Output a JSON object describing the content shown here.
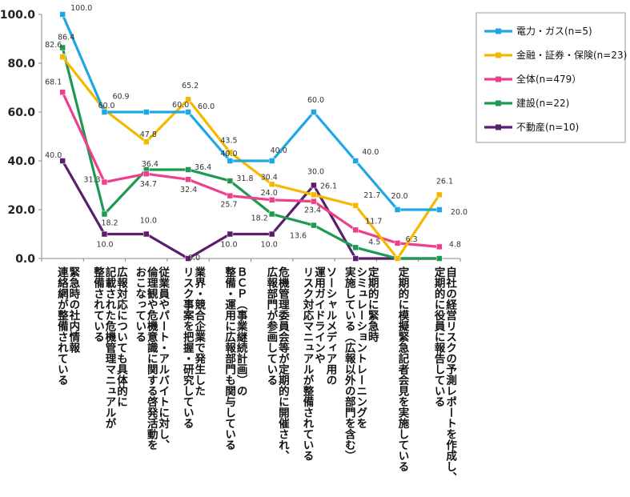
{
  "chart_data": {
    "type": "line",
    "title": "",
    "xlabel": "",
    "ylabel": "",
    "ylim": [
      0,
      100
    ],
    "yticks": [
      "0.0",
      "20.0",
      "40.0",
      "60.0",
      "80.0",
      "100.0"
    ],
    "categories": [
      [
        "緊急時の社内情報",
        "連絡網が整備されている"
      ],
      [
        "広報対応についても具体的に",
        "記載された危機管理マニュアルが",
        "整備されている"
      ],
      [
        "従業員やパート・アルバイトに対し、",
        "倫理観や危機意識に関する啓発活動を",
        "おこなっている"
      ],
      [
        "業界・競合企業で発生した",
        "リスク事案を把握・研究している"
      ],
      [
        "ＢＣＰ（事業継続計画）の",
        "整備・運用に広報部門も関与している"
      ],
      [
        "危機管理委員会等が定期的に開催され、",
        "広報部門が参画している"
      ],
      [
        "ソーシャルメディア用の",
        "運用ガイドラインや",
        "リスク対応マニュアルが整備されている"
      ],
      [
        "定期的に緊急時",
        "シミュレーショントレーニングを",
        "実施している（広報以外の部門を含む）"
      ],
      [
        "定期的に模擬緊急記者会見を実施している"
      ],
      [
        "自社の経営リスクの予測レポートを作成し、",
        "定期的に役員に報告している"
      ]
    ],
    "series": [
      {
        "name": "電力・ガス(n=5)",
        "color": "#1ea7e0",
        "values": [
          100.0,
          60.0,
          60.0,
          60.0,
          40.0,
          40.0,
          60.0,
          40.0,
          20.0,
          20.0
        ]
      },
      {
        "name": "金融・証券・保険(n=23)",
        "color": "#f5b800",
        "values": [
          82.6,
          60.9,
          47.8,
          65.2,
          43.5,
          30.4,
          26.1,
          21.7,
          0.0,
          26.1
        ]
      },
      {
        "name": "全体(n=479）",
        "color": "#ee3f8c",
        "values": [
          68.1,
          31.3,
          34.7,
          32.4,
          25.7,
          24.0,
          23.4,
          11.7,
          6.3,
          4.8
        ]
      },
      {
        "name": "建設(n=22)",
        "color": "#1d9a4f",
        "values": [
          86.4,
          18.2,
          36.4,
          36.4,
          31.8,
          18.2,
          13.6,
          4.5,
          0.0,
          0.0
        ]
      },
      {
        "name": "不動産(n=10)",
        "color": "#5a1e6b",
        "values": [
          40.0,
          10.0,
          10.0,
          0.0,
          10.0,
          10.0,
          30.0,
          0.0,
          0.0,
          0.0
        ]
      }
    ],
    "data_labels": [
      {
        "text": "100.0",
        "x": 0,
        "y": 100.0
      },
      {
        "text": "86.4",
        "x": 0,
        "y": 86.4
      },
      {
        "text": "82.6",
        "x": 0,
        "y": 82.6
      },
      {
        "text": "68.1",
        "x": 0,
        "y": 68.1
      },
      {
        "text": "40.0",
        "x": 0,
        "y": 40.0
      },
      {
        "text": "60.9",
        "x": 1,
        "y": 60.9
      },
      {
        "text": "60.0",
        "x": 1,
        "y": 60.0
      },
      {
        "text": "31.3",
        "x": 1,
        "y": 31.3
      },
      {
        "text": "18.2",
        "x": 1,
        "y": 18.2
      },
      {
        "text": "10.0",
        "x": 1,
        "y": 10.0
      },
      {
        "text": "47.8",
        "x": 2,
        "y": 47.8
      },
      {
        "text": "36.4",
        "x": 2,
        "y": 36.4
      },
      {
        "text": "34.7",
        "x": 2,
        "y": 34.7
      },
      {
        "text": "10.0",
        "x": 2,
        "y": 10.0
      },
      {
        "text": "60.0",
        "x": 3,
        "y": 60.0
      },
      {
        "text": "65.2",
        "x": 3,
        "y": 65.2
      },
      {
        "text": "60.0",
        "x": 3,
        "y": 60.0
      },
      {
        "text": "36.4",
        "x": 3,
        "y": 36.4
      },
      {
        "text": "32.4",
        "x": 3,
        "y": 32.4
      },
      {
        "text": "0.0",
        "x": 3,
        "y": 0.0
      },
      {
        "text": "43.5",
        "x": 4,
        "y": 43.5
      },
      {
        "text": "40.0",
        "x": 4,
        "y": 40.0
      },
      {
        "text": "31.8",
        "x": 4,
        "y": 31.8
      },
      {
        "text": "25.7",
        "x": 4,
        "y": 25.7
      },
      {
        "text": "10.0",
        "x": 4,
        "y": 10.0
      },
      {
        "text": "40.0",
        "x": 5,
        "y": 40.0
      },
      {
        "text": "30.4",
        "x": 5,
        "y": 30.4
      },
      {
        "text": "24.0",
        "x": 5,
        "y": 24.0
      },
      {
        "text": "18.2",
        "x": 5,
        "y": 18.2
      },
      {
        "text": "10.0",
        "x": 5,
        "y": 10.0
      },
      {
        "text": "60.0",
        "x": 6,
        "y": 60.0
      },
      {
        "text": "30.0",
        "x": 6,
        "y": 30.0
      },
      {
        "text": "26.1",
        "x": 6,
        "y": 26.1
      },
      {
        "text": "23.4",
        "x": 6,
        "y": 23.4
      },
      {
        "text": "13.6",
        "x": 6,
        "y": 13.6
      },
      {
        "text": "40.0",
        "x": 7,
        "y": 40.0
      },
      {
        "text": "21.7",
        "x": 7,
        "y": 21.7
      },
      {
        "text": "11.7",
        "x": 7,
        "y": 11.7
      },
      {
        "text": "4.5",
        "x": 7,
        "y": 4.5
      },
      {
        "text": "20.0",
        "x": 8,
        "y": 20.0
      },
      {
        "text": "6.3",
        "x": 8,
        "y": 6.3
      },
      {
        "text": "26.1",
        "x": 9,
        "y": 26.1
      },
      {
        "text": "20.0",
        "x": 9,
        "y": 20.0
      },
      {
        "text": "4.8",
        "x": 9,
        "y": 4.8
      }
    ],
    "legend_position": "top-right",
    "grid": false
  }
}
